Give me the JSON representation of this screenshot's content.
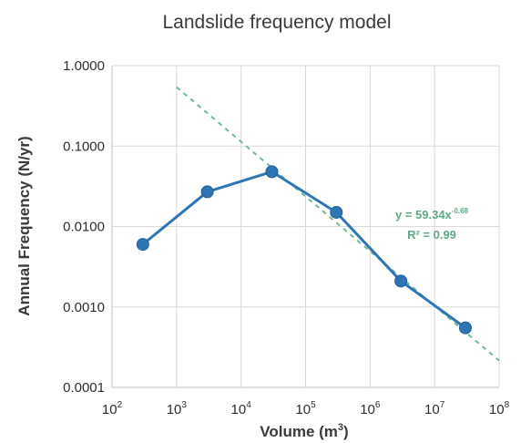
{
  "chart_data": {
    "type": "scatter",
    "title": "Landslide frequency model",
    "xlabel": "Volume (m",
    "xlabel_sup": "3",
    "xlabel_suffix": ")",
    "ylabel": "Annual Frequency (N/yr)",
    "x_scale": "log",
    "y_scale": "log",
    "xlim": [
      100,
      100000000
    ],
    "ylim": [
      0.0001,
      1
    ],
    "x_ticks": [
      {
        "base": "10",
        "exp": "2",
        "value": 100
      },
      {
        "base": "10",
        "exp": "3",
        "value": 1000
      },
      {
        "base": "10",
        "exp": "4",
        "value": 10000
      },
      {
        "base": "10",
        "exp": "5",
        "value": 100000
      },
      {
        "base": "10",
        "exp": "6",
        "value": 1000000
      },
      {
        "base": "10",
        "exp": "7",
        "value": 10000000
      },
      {
        "base": "10",
        "exp": "8",
        "value": 100000000
      }
    ],
    "y_ticks": [
      {
        "label": "1.0000",
        "value": 1
      },
      {
        "label": "0.1000",
        "value": 0.1
      },
      {
        "label": "0.0100",
        "value": 0.01
      },
      {
        "label": "0.0010",
        "value": 0.001
      },
      {
        "label": "0.0001",
        "value": 0.0001
      }
    ],
    "grid": true,
    "series": [
      {
        "x": [
          300,
          3000,
          30000,
          300000,
          3000000,
          30000000
        ],
        "y": [
          0.006,
          0.027,
          0.048,
          0.015,
          0.0021,
          0.00055
        ],
        "color": "#2e75b6",
        "connected": true
      }
    ],
    "trendline": {
      "type": "power",
      "coefficient": 59.34,
      "exponent": -0.68,
      "x_range": [
        1000,
        100000000
      ],
      "color": "#6dbb95",
      "style": "dashed",
      "equation_prefix": "y = 59.34x",
      "equation_exp": "-0.68",
      "r2_label": "R² = 0.99"
    }
  }
}
